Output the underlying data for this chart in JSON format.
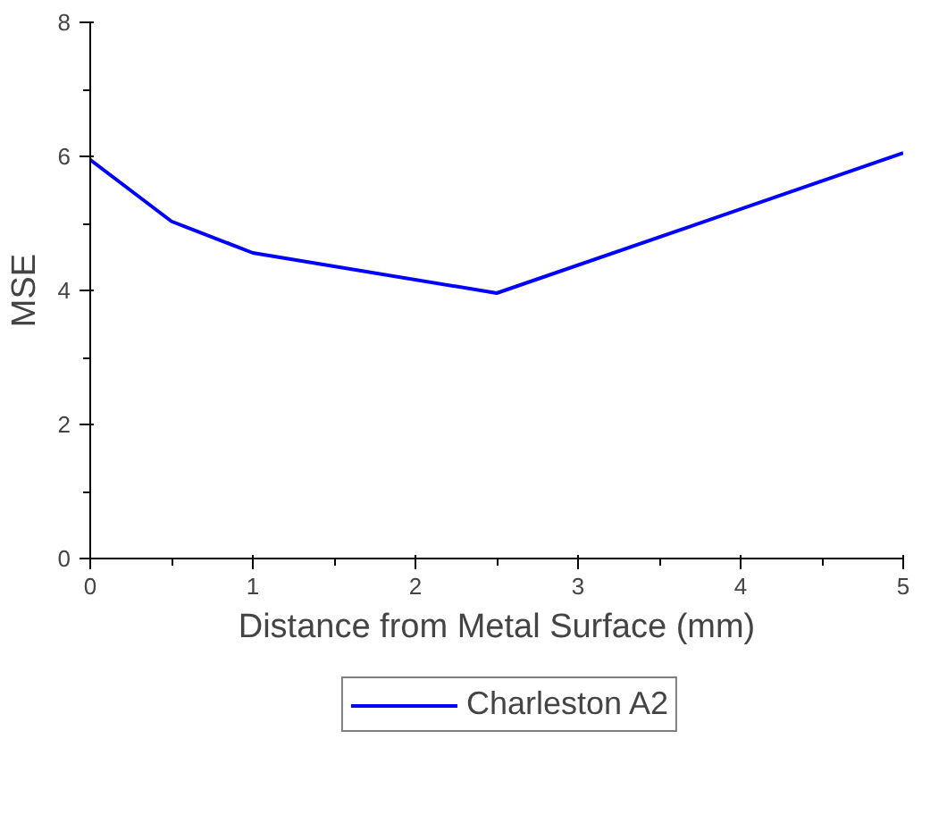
{
  "chart_data": {
    "type": "line",
    "xlabel": "Distance from Metal Surface (mm)",
    "ylabel": "MSE",
    "x": [
      0,
      0.5,
      1,
      2.5,
      5
    ],
    "series": [
      {
        "name": "Charleston A2",
        "color": "#0000ff",
        "values": [
          5.95,
          5.03,
          4.56,
          3.96,
          6.05
        ]
      }
    ],
    "xlim": [
      0,
      5
    ],
    "ylim": [
      0,
      8
    ],
    "xticks": [
      0,
      1,
      2,
      3,
      4,
      5
    ],
    "yticks": [
      0,
      2,
      4,
      6,
      8
    ],
    "grid": false,
    "legend": "bottom",
    "marker": "none",
    "line_style": "solid"
  }
}
